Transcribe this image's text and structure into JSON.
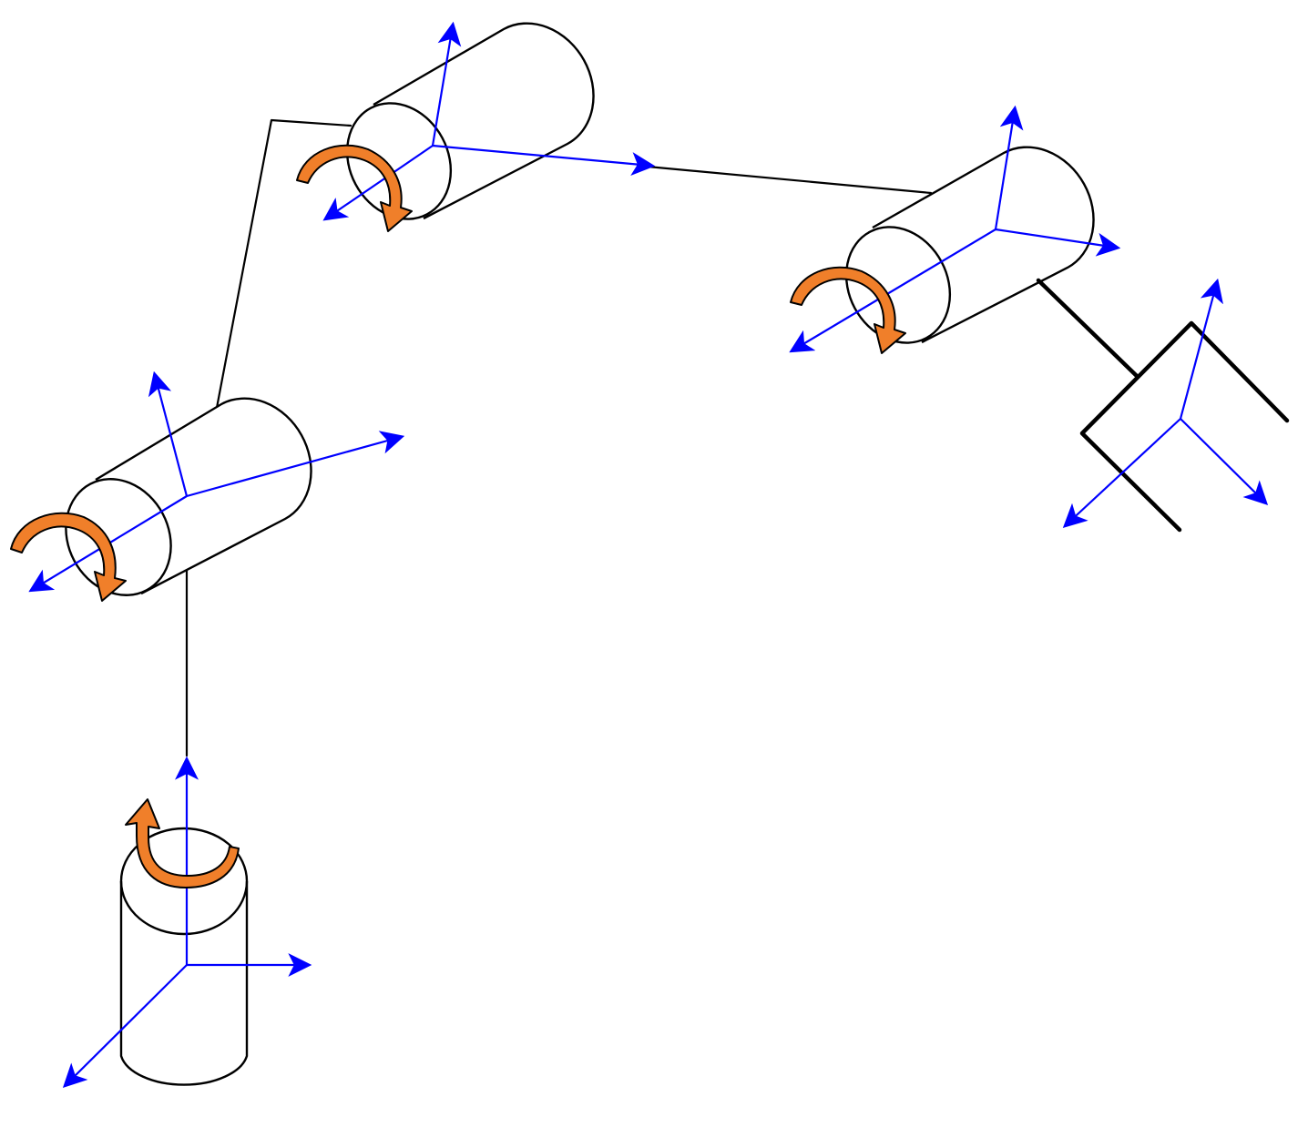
{
  "colors": {
    "background": "#ffffff",
    "outline": "#000000",
    "axis": "#0000ff",
    "rotation_arrow": "#f07f2a"
  },
  "figure": {
    "joints": [
      {
        "name": "base",
        "type": "revolute",
        "rotation_axis": "vertical"
      },
      {
        "name": "shoulder",
        "type": "revolute",
        "rotation_axis": "horizontal"
      },
      {
        "name": "elbow",
        "type": "revolute",
        "rotation_axis": "horizontal"
      },
      {
        "name": "wrist",
        "type": "revolute",
        "rotation_axis": "horizontal"
      }
    ],
    "end_effector": {
      "name": "gripper"
    },
    "icons": [
      "cylinder-joint-icon",
      "coordinate-frame-icon",
      "rotation-arrow-icon",
      "gripper-icon"
    ]
  }
}
